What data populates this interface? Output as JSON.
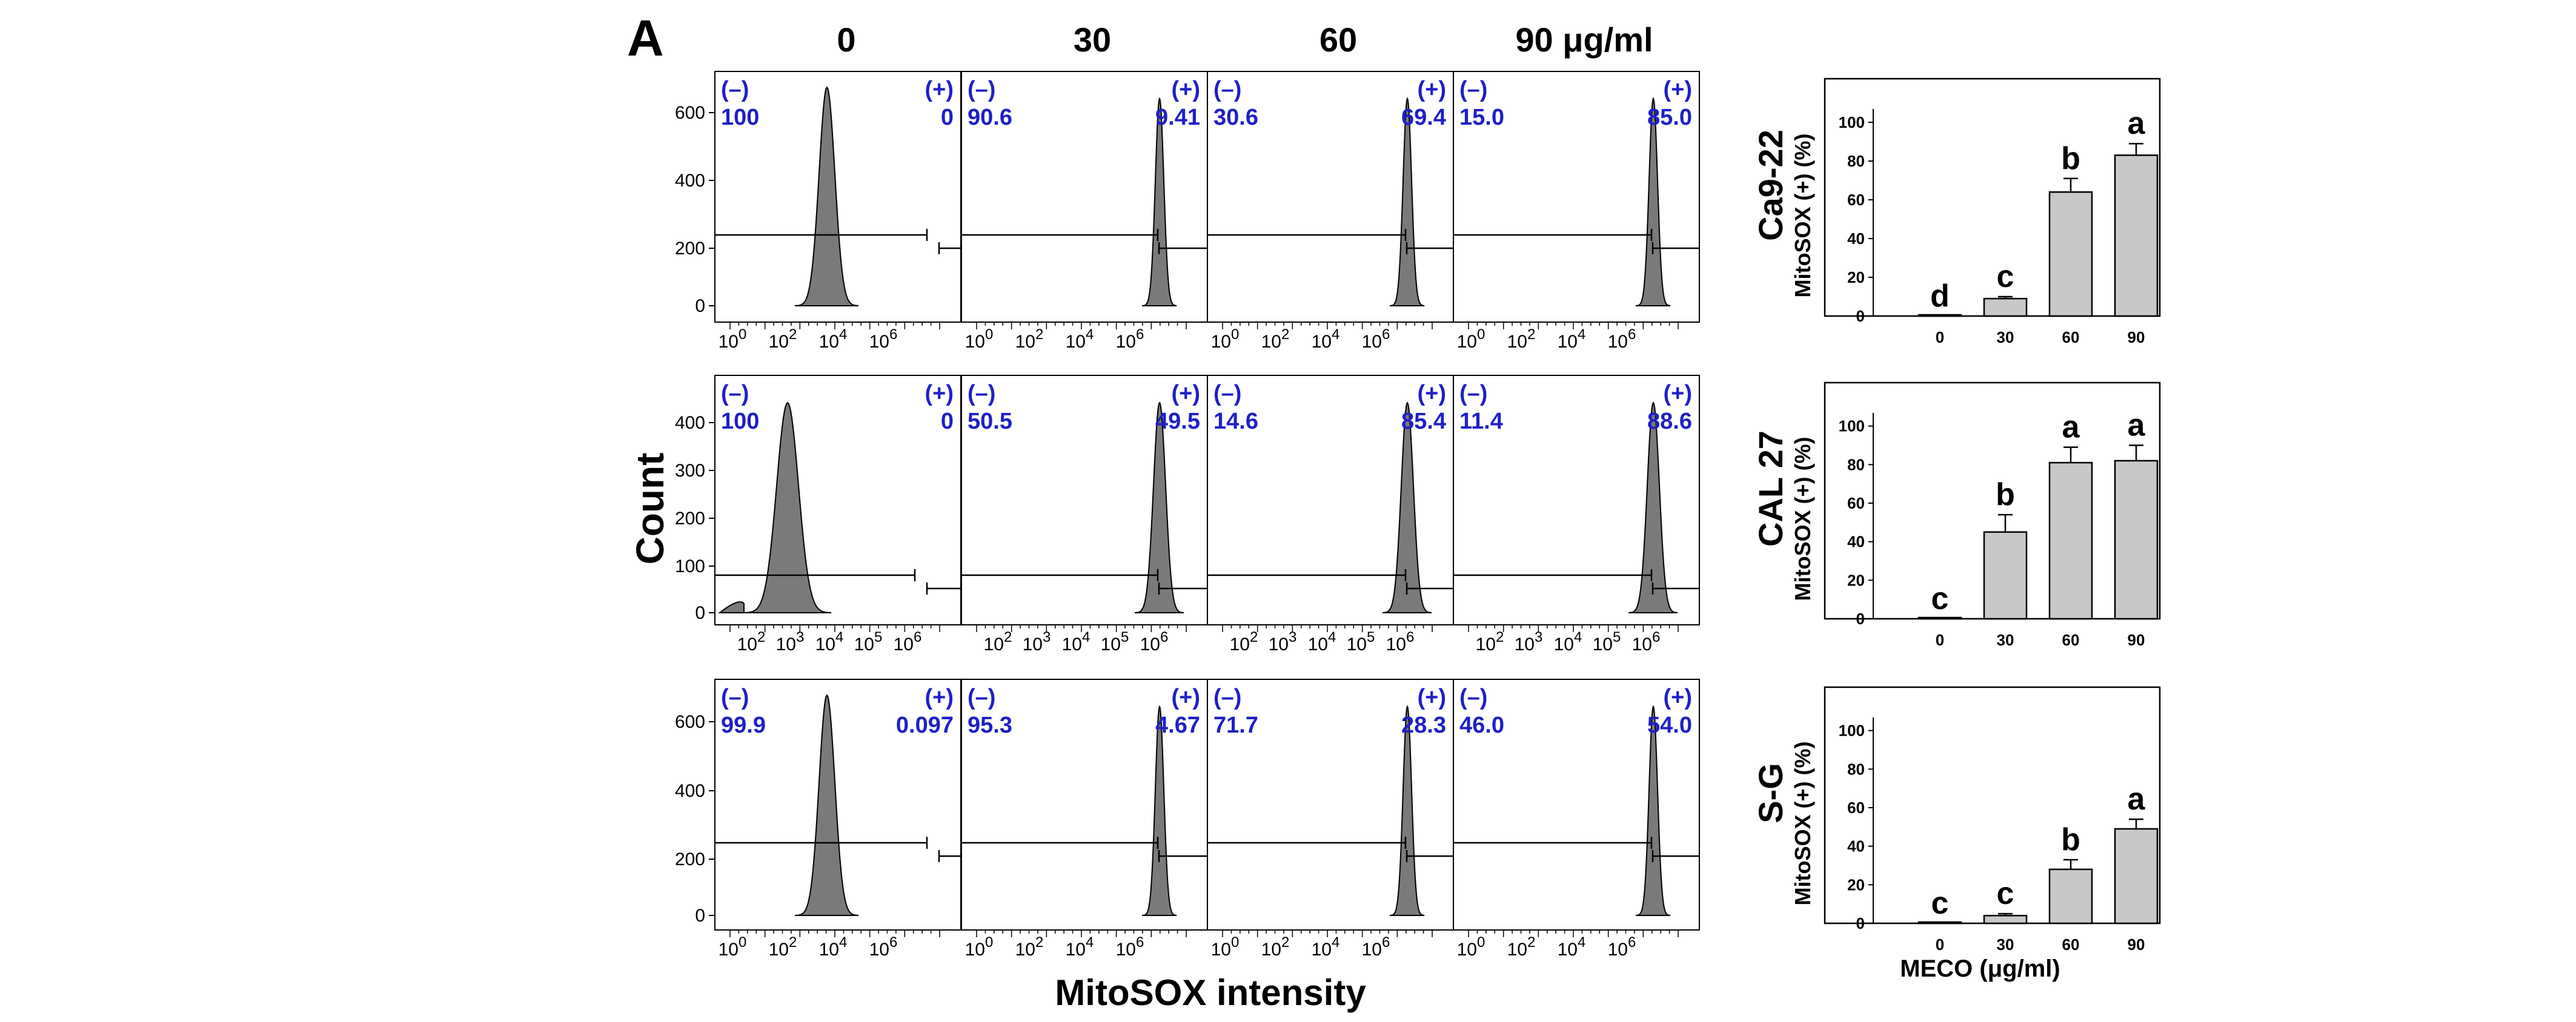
{
  "panel_label": "A",
  "x_axis_label": "MitoSOX intensity",
  "y_axis_label": "Count",
  "concentration_headers": [
    "0",
    "30",
    "60",
    "90 μg/ml"
  ],
  "rows": [
    {
      "cell_line": "Ca9-22",
      "y_ticks": [
        "600",
        "400",
        "200",
        "0"
      ],
      "x_tick_labels": [
        "10^0",
        "10^2",
        "10^4",
        "10^6"
      ],
      "neg_label": "(–)",
      "pos_label": "(+)",
      "histograms": [
        {
          "concentration": "0",
          "negative": "100",
          "positive": "0"
        },
        {
          "concentration": "30",
          "negative": "90.6",
          "positive": "9.41"
        },
        {
          "concentration": "60",
          "negative": "30.6",
          "positive": "69.4"
        },
        {
          "concentration": "90",
          "negative": "15.0",
          "positive": "85.0"
        }
      ]
    },
    {
      "cell_line": "CAL 27",
      "y_ticks": [
        "400",
        "300",
        "200",
        "100",
        "0"
      ],
      "x_tick_labels": [
        "10^2",
        "10^3",
        "10^4",
        "10^5",
        "10^6"
      ],
      "neg_label": "(–)",
      "pos_label": "(+)",
      "histograms": [
        {
          "concentration": "0",
          "negative": "100",
          "positive": "0"
        },
        {
          "concentration": "30",
          "negative": "50.5",
          "positive": "49.5"
        },
        {
          "concentration": "60",
          "negative": "14.6",
          "positive": "85.4"
        },
        {
          "concentration": "90",
          "negative": "11.4",
          "positive": "88.6"
        }
      ]
    },
    {
      "cell_line": "S-G",
      "y_ticks": [
        "600",
        "400",
        "200",
        "0"
      ],
      "x_tick_labels": [
        "10^0",
        "10^2",
        "10^4",
        "10^6"
      ],
      "neg_label": "(–)",
      "pos_label": "(+)",
      "histograms": [
        {
          "concentration": "0",
          "negative": "99.9",
          "positive": "0.097"
        },
        {
          "concentration": "30",
          "negative": "95.3",
          "positive": "4.67"
        },
        {
          "concentration": "60",
          "negative": "71.7",
          "positive": "28.3"
        },
        {
          "concentration": "90",
          "negative": "46.0",
          "positive": "54.0"
        }
      ]
    }
  ],
  "chart_data": [
    {
      "type": "bar",
      "title": "Ca9-22",
      "categories": [
        "0",
        "30",
        "60",
        "90"
      ],
      "values": [
        0,
        9,
        64,
        83
      ],
      "errors": [
        0,
        1,
        7,
        6
      ],
      "significance_letters": [
        "d",
        "c",
        "b",
        "a"
      ],
      "ylabel": "MitoSOX (+) (%)",
      "xlabel": "",
      "ylim": [
        0,
        120
      ],
      "y_ticks": [
        0,
        20,
        40,
        60,
        80,
        100
      ]
    },
    {
      "type": "bar",
      "title": "CAL 27",
      "categories": [
        "0",
        "30",
        "60",
        "90"
      ],
      "values": [
        0,
        45,
        81,
        82
      ],
      "errors": [
        0,
        9,
        8,
        8
      ],
      "significance_letters": [
        "c",
        "b",
        "a",
        "a"
      ],
      "ylabel": "MitoSOX (+) (%)",
      "xlabel": "",
      "ylim": [
        0,
        120
      ],
      "y_ticks": [
        0,
        20,
        40,
        60,
        80,
        100
      ]
    },
    {
      "type": "bar",
      "title": "S-G",
      "categories": [
        "0",
        "30",
        "60",
        "90"
      ],
      "values": [
        0,
        4,
        28,
        49
      ],
      "errors": [
        0,
        1,
        5,
        5
      ],
      "significance_letters": [
        "c",
        "c",
        "b",
        "a"
      ],
      "ylabel": "MitoSOX (+) (%)",
      "xlabel": "MECO (μg/ml)",
      "ylim": [
        0,
        120
      ],
      "y_ticks": [
        0,
        20,
        40,
        60,
        80,
        100
      ]
    }
  ],
  "colors": {
    "percent_text": "#1f1fc8",
    "peak_fill": "#7a7a7a",
    "bar_fill": "#c8c8c8",
    "axis": "#000000"
  }
}
